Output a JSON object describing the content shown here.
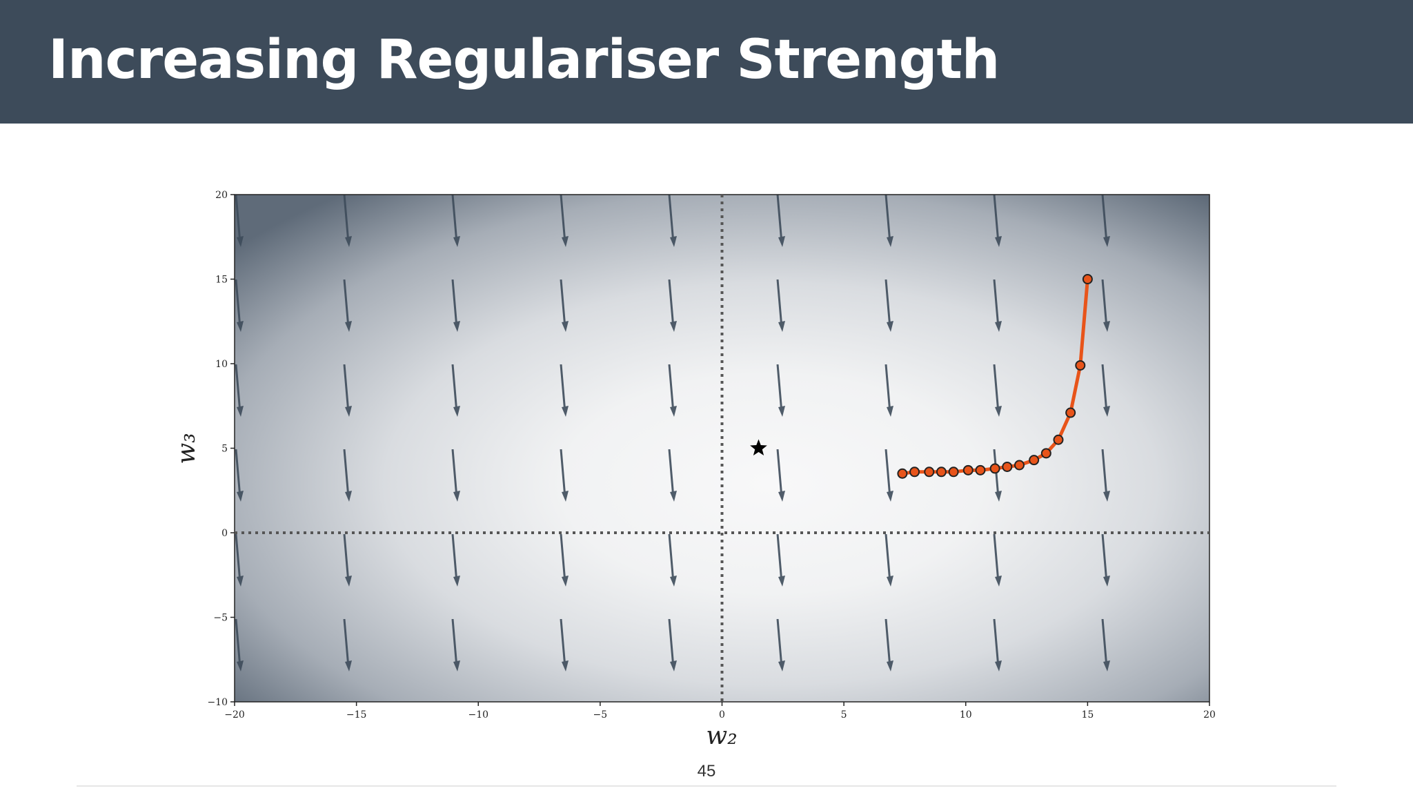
{
  "header": {
    "title": "Increasing Regulariser Strength"
  },
  "page_number": "45",
  "chart_data": {
    "type": "line",
    "xlabel": "w₂",
    "ylabel": "w₃",
    "xlim": [
      -20,
      20
    ],
    "ylim": [
      -10,
      20
    ],
    "xticks": [
      {
        "value": -20,
        "label": "−20"
      },
      {
        "value": -15,
        "label": "−15"
      },
      {
        "value": -10,
        "label": "−10"
      },
      {
        "value": -5,
        "label": "−5"
      },
      0,
      5,
      10,
      15,
      20
    ],
    "yticks": [
      {
        "value": -10,
        "label": "−10"
      },
      {
        "value": -5,
        "label": "−5"
      },
      0,
      5,
      10,
      15,
      20
    ],
    "x": [
      15.0,
      14.7,
      14.3,
      13.8,
      13.3,
      12.8,
      12.2,
      11.7,
      11.2,
      10.6,
      10.1,
      9.5,
      9.0,
      8.5,
      7.9,
      7.4
    ],
    "series": [
      {
        "color": "#e8541a",
        "values": [
          15.0,
          9.9,
          7.1,
          5.5,
          4.7,
          4.3,
          4.0,
          3.9,
          3.8,
          3.7,
          3.7,
          3.6,
          3.6,
          3.6,
          3.6,
          3.5
        ]
      }
    ],
    "star": {
      "x": 1.5,
      "y": 5.0,
      "color": "#000000"
    }
  }
}
